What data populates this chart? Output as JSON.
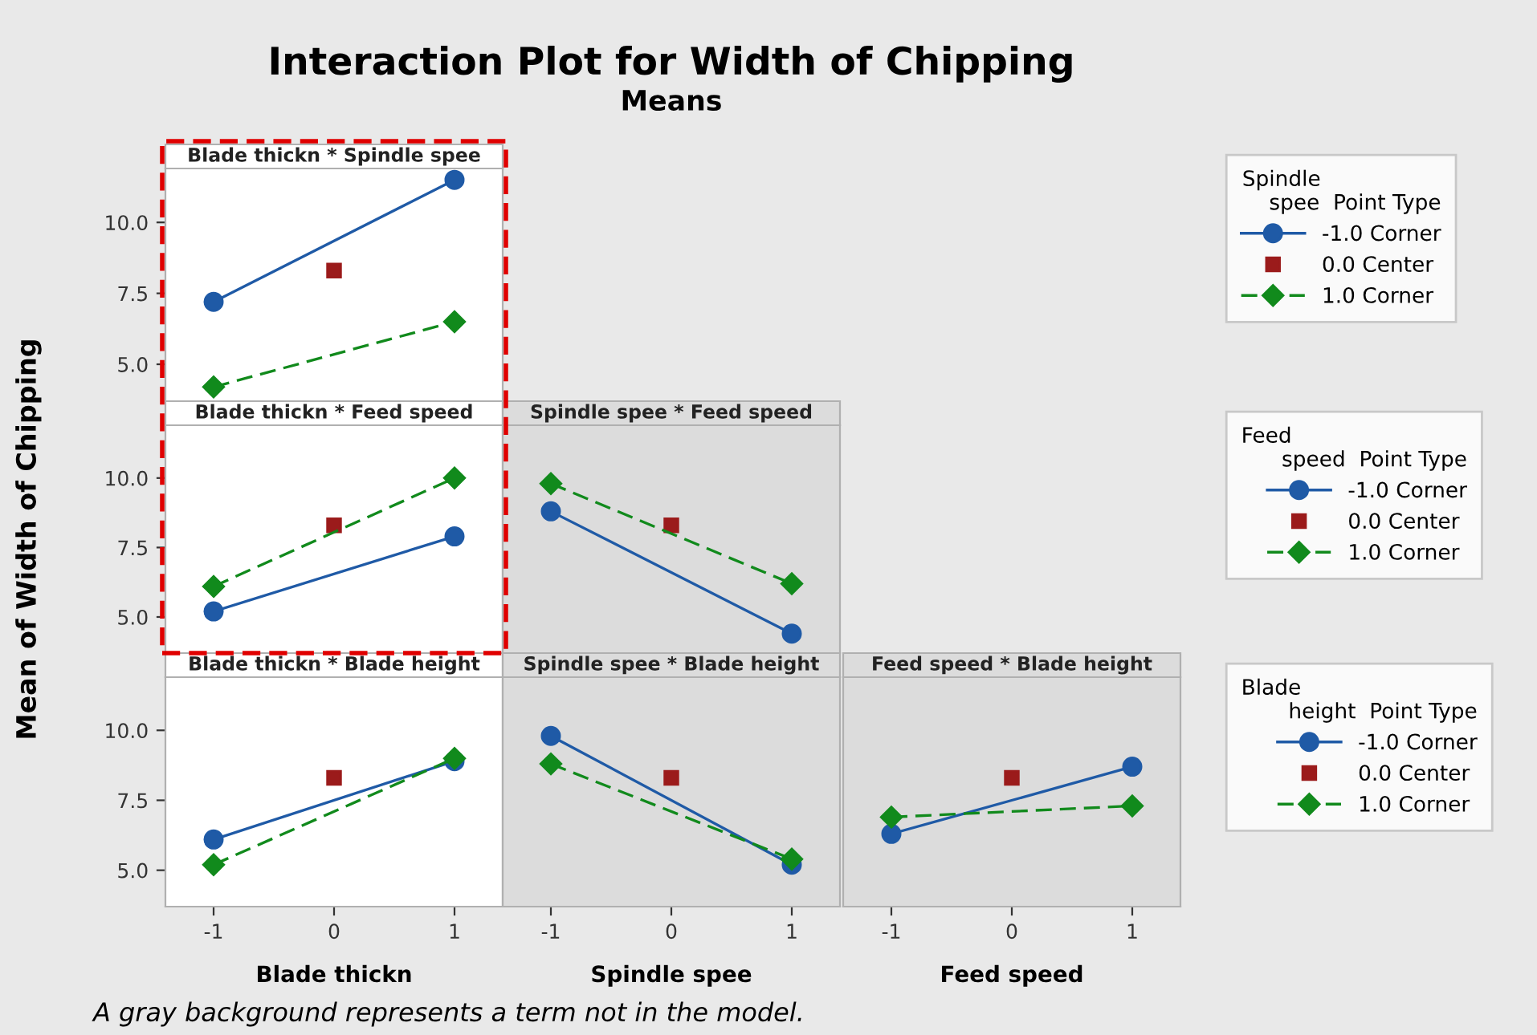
{
  "chart_data": [
    {
      "type": "other",
      "title": "Interaction Plot for Width of Chipping",
      "subtitle": "Means",
      "annotations": [
        "A gray background represents a term not in the model."
      ]
    },
    {
      "type": "line",
      "title": "Blade thickn * Spindle spee",
      "xlim": [
        -1.4,
        1.4
      ],
      "ylim": [
        3.7,
        11.9
      ],
      "yticks": [
        {
          "value": 5,
          "label": "5.0"
        },
        {
          "value": 7.5,
          "label": "7.5"
        },
        {
          "value": 10,
          "label": "10.0"
        }
      ],
      "tick_labels": "y",
      "legend": "right",
      "legend_title": "Spindle\n    spee  Point Type",
      "series": [
        {
          "name": "-1.0 Corner",
          "type": "line",
          "color": "#1f5aa6",
          "x": [
            -1,
            1
          ],
          "values": [
            7.2,
            11.5
          ],
          "marker": "circle",
          "line_style": "solid"
        },
        {
          "name": "0.0 Center",
          "type": "scatter",
          "color": "#9b1b1b",
          "x": [
            0
          ],
          "values": [
            8.3
          ],
          "marker": "square"
        },
        {
          "name": "1.0 Corner",
          "type": "line",
          "color": "#118a1c",
          "x": [
            -1,
            1
          ],
          "values": [
            4.2,
            6.5
          ],
          "marker": "diamond",
          "line_style": "dashed"
        }
      ]
    },
    {
      "type": "line",
      "title": "Blade thickn * Feed speed",
      "ylabel": "Mean of Width of Chipping",
      "xlim": [
        -1.4,
        1.4
      ],
      "ylim": [
        3.7,
        11.9
      ],
      "yticks": [
        {
          "value": 5,
          "label": "5.0"
        },
        {
          "value": 7.5,
          "label": "7.5"
        },
        {
          "value": 10,
          "label": "10.0"
        }
      ],
      "tick_labels": "y",
      "series": [
        {
          "type": "line",
          "color": "#1f5aa6",
          "x": [
            -1,
            1
          ],
          "values": [
            5.2,
            7.9
          ],
          "marker": "circle",
          "line_style": "solid"
        },
        {
          "type": "scatter",
          "color": "#9b1b1b",
          "x": [
            0
          ],
          "values": [
            8.3
          ],
          "marker": "square"
        },
        {
          "type": "line",
          "color": "#118a1c",
          "x": [
            -1,
            1
          ],
          "values": [
            6.1,
            10.0
          ],
          "marker": "diamond",
          "line_style": "dashed"
        }
      ]
    },
    {
      "type": "line",
      "title": "Spindle spee * Feed speed",
      "xlim": [
        -1.4,
        1.4
      ],
      "ylim": [
        3.7,
        11.9
      ],
      "tick_labels": false,
      "legend": "right",
      "legend_title": "Feed\n      speed  Point Type",
      "bands": [
        {
          "axis": "x",
          "from": -1.4,
          "to": 1.4,
          "color": "#dcdcdc"
        }
      ],
      "series": [
        {
          "name": "-1.0 Corner",
          "type": "line",
          "color": "#1f5aa6",
          "x": [
            -1,
            1
          ],
          "values": [
            8.8,
            4.4
          ],
          "marker": "circle",
          "line_style": "solid"
        },
        {
          "name": "0.0 Center",
          "type": "scatter",
          "color": "#9b1b1b",
          "x": [
            0
          ],
          "values": [
            8.3
          ],
          "marker": "square"
        },
        {
          "name": "1.0 Corner",
          "type": "line",
          "color": "#118a1c",
          "x": [
            -1,
            1
          ],
          "values": [
            9.8,
            6.2
          ],
          "marker": "diamond",
          "line_style": "dashed"
        }
      ]
    },
    {
      "type": "line",
      "title": "Blade thickn * Blade height",
      "xlabel": "Blade thickn",
      "xlim": [
        -1.4,
        1.4
      ],
      "ylim": [
        3.7,
        11.9
      ],
      "xticks": [
        -1,
        0,
        1
      ],
      "yticks": [
        {
          "value": 5,
          "label": "5.0"
        },
        {
          "value": 7.5,
          "label": "7.5"
        },
        {
          "value": 10,
          "label": "10.0"
        }
      ],
      "series": [
        {
          "type": "line",
          "color": "#1f5aa6",
          "x": [
            -1,
            1
          ],
          "values": [
            6.1,
            8.9
          ],
          "marker": "circle",
          "line_style": "solid"
        },
        {
          "type": "scatter",
          "color": "#9b1b1b",
          "x": [
            0
          ],
          "values": [
            8.3
          ],
          "marker": "square"
        },
        {
          "type": "line",
          "color": "#118a1c",
          "x": [
            -1,
            1
          ],
          "values": [
            5.2,
            9.0
          ],
          "marker": "diamond",
          "line_style": "dashed"
        }
      ]
    },
    {
      "type": "line",
      "title": "Spindle spee * Blade height",
      "xlabel": "Spindle spee",
      "xlim": [
        -1.4,
        1.4
      ],
      "ylim": [
        3.7,
        11.9
      ],
      "xticks": [
        -1,
        0,
        1
      ],
      "tick_labels": "x",
      "bands": [
        {
          "axis": "x",
          "from": -1.4,
          "to": 1.4,
          "color": "#dcdcdc"
        }
      ],
      "series": [
        {
          "type": "line",
          "color": "#1f5aa6",
          "x": [
            -1,
            1
          ],
          "values": [
            9.8,
            5.2
          ],
          "marker": "circle",
          "line_style": "solid"
        },
        {
          "type": "scatter",
          "color": "#9b1b1b",
          "x": [
            0
          ],
          "values": [
            8.3
          ],
          "marker": "square"
        },
        {
          "type": "line",
          "color": "#118a1c",
          "x": [
            -1,
            1
          ],
          "values": [
            8.8,
            5.4
          ],
          "marker": "diamond",
          "line_style": "dashed"
        }
      ]
    },
    {
      "type": "line",
      "title": "Feed speed * Blade height",
      "xlabel": "Feed speed",
      "xlim": [
        -1.4,
        1.4
      ],
      "ylim": [
        3.7,
        11.9
      ],
      "xticks": [
        -1,
        0,
        1
      ],
      "tick_labels": "x",
      "legend": "right",
      "legend_title": "Blade\n       height  Point Type",
      "bands": [
        {
          "axis": "x",
          "from": -1.4,
          "to": 1.4,
          "color": "#dcdcdc"
        }
      ],
      "series": [
        {
          "name": "-1.0 Corner",
          "type": "line",
          "color": "#1f5aa6",
          "x": [
            -1,
            1
          ],
          "values": [
            6.3,
            8.7
          ],
          "marker": "circle",
          "line_style": "solid"
        },
        {
          "name": "0.0 Center",
          "type": "scatter",
          "color": "#9b1b1b",
          "x": [
            0
          ],
          "values": [
            8.3
          ],
          "marker": "square"
        },
        {
          "name": "1.0 Corner",
          "type": "line",
          "color": "#118a1c",
          "x": [
            -1,
            1
          ],
          "values": [
            6.9,
            7.3
          ],
          "marker": "diamond",
          "line_style": "dashed"
        }
      ]
    }
  ]
}
